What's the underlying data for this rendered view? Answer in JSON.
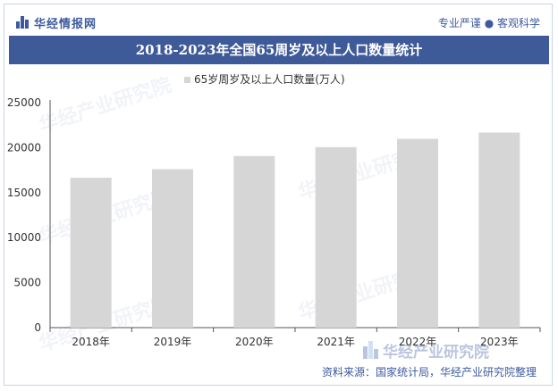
{
  "header": {
    "brand": "华经情报网",
    "tagline": "专业严谨 ● 客观科学"
  },
  "colors": {
    "accent": "#3f5a98",
    "bar": "#d6d6d6",
    "axis": "#555555"
  },
  "chart_data": {
    "type": "bar",
    "title": "2018-2023年全国65周岁及以上人口数量统计",
    "categories": [
      "2018年",
      "2019年",
      "2020年",
      "2021年",
      "2022年",
      "2023年"
    ],
    "series": [
      {
        "name": "65岁周岁及以上人口数量(万人)",
        "values": [
          16658,
          17603,
          19064,
          20056,
          20978,
          21676
        ]
      }
    ],
    "ylim": [
      0,
      25000
    ],
    "yticks": [
      0,
      5000,
      10000,
      15000,
      20000,
      25000
    ],
    "legend_position": "top-center",
    "grid": false
  },
  "footer": {
    "source": "资料来源：国家统计局，华经产业研究院整理",
    "logo_text": "华经产业研究院"
  },
  "watermark_text": "华经产业研究院"
}
